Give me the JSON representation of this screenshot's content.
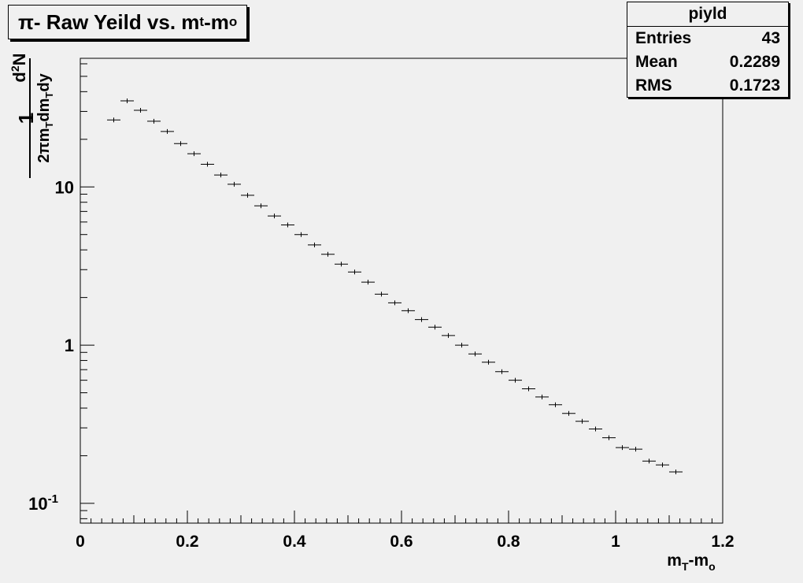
{
  "title": {
    "pre": "π- Raw Yeild vs. m",
    "sub1": "t",
    "mid": "-m",
    "sub2": "o"
  },
  "stats": {
    "name": "piyld",
    "rows": [
      {
        "label": "Entries",
        "value": "43"
      },
      {
        "label": "Mean",
        "value": "0.2289"
      },
      {
        "label": "RMS",
        "value": "0.1723"
      }
    ]
  },
  "chart_data": {
    "type": "scatter",
    "title": "π- Raw Yeild vs. mt-mo",
    "xlabel": "mT-mo",
    "ylabel": "1 / (2π mT dmT dy) · d2N",
    "x_scale": "linear",
    "y_scale": "log",
    "xlim": [
      0,
      1.2
    ],
    "ylim": [
      0.075,
      65
    ],
    "x_ticks": [
      "0",
      "0.2",
      "0.4",
      "0.6",
      "0.8",
      "1",
      "1.2"
    ],
    "y_tick_labels": [
      {
        "value": 10,
        "base": "10",
        "exp": ""
      },
      {
        "value": 1,
        "base": "1",
        "exp": ""
      },
      {
        "value": 0.1,
        "base": "10",
        "exp": "-1"
      }
    ],
    "bin_width": 0.025,
    "grid": false,
    "series": [
      {
        "x": [
          0.0625,
          0.0875,
          0.1125,
          0.1375,
          0.1625,
          0.1875,
          0.2125,
          0.2375,
          0.2625,
          0.2875,
          0.3125,
          0.3375,
          0.3625,
          0.3875,
          0.4125,
          0.4375,
          0.4625,
          0.4875,
          0.5125,
          0.5375,
          0.5625,
          0.5875,
          0.6125,
          0.6375,
          0.6625,
          0.6875,
          0.7125,
          0.7375,
          0.7625,
          0.7875,
          0.8125,
          0.8375,
          0.8625,
          0.8875,
          0.9125,
          0.9375,
          0.9625,
          0.9875,
          1.0125,
          1.0375,
          1.0625,
          1.0875,
          1.1125
        ],
        "y": [
          26.5,
          35.0,
          30.5,
          26.0,
          22.4,
          18.8,
          16.2,
          13.9,
          11.9,
          10.4,
          8.85,
          7.6,
          6.55,
          5.75,
          5.0,
          4.3,
          3.75,
          3.25,
          2.9,
          2.5,
          2.1,
          1.85,
          1.65,
          1.45,
          1.3,
          1.15,
          1.0,
          0.88,
          0.78,
          0.68,
          0.6,
          0.53,
          0.47,
          0.42,
          0.37,
          0.33,
          0.295,
          0.26,
          0.225,
          0.22,
          0.185,
          0.175,
          0.158
        ]
      }
    ]
  }
}
